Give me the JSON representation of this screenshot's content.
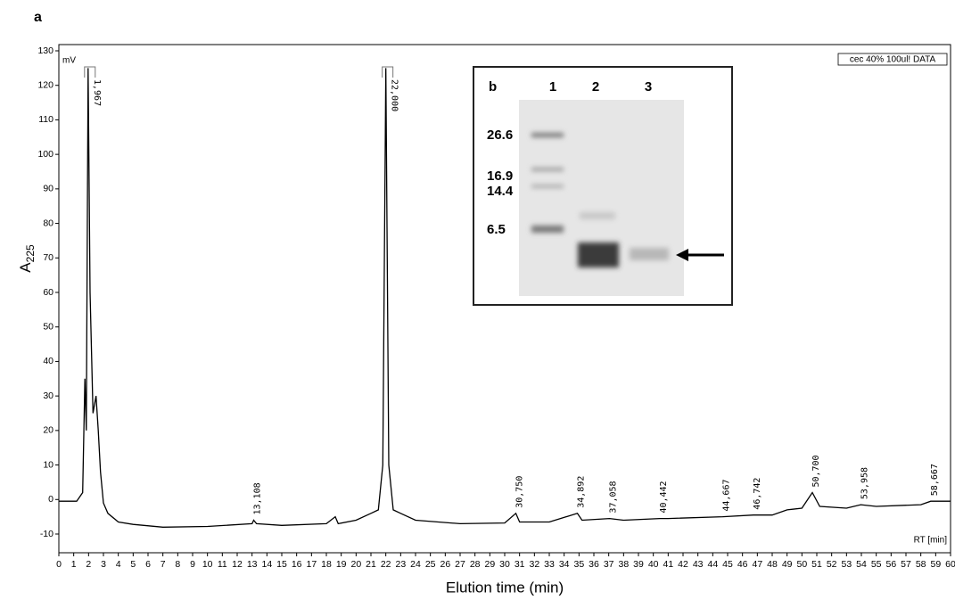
{
  "panel_label": "a",
  "chart_data": {
    "type": "line",
    "xlabel": "Elution time (min)",
    "ylabel": {
      "text": "A",
      "subscript": "225"
    },
    "y_unit": "mV",
    "x_unit": "RT [min]",
    "file_label": "cec 40% 100ul! DATA",
    "xlim": [
      0,
      60
    ],
    "ylim": [
      -10,
      130
    ],
    "xticks": [
      0,
      1,
      2,
      3,
      4,
      5,
      6,
      7,
      8,
      9,
      10,
      11,
      12,
      13,
      14,
      15,
      16,
      17,
      18,
      19,
      20,
      21,
      22,
      23,
      24,
      25,
      26,
      27,
      28,
      29,
      30,
      31,
      32,
      33,
      34,
      35,
      36,
      37,
      38,
      39,
      40,
      41,
      42,
      43,
      44,
      45,
      46,
      47,
      48,
      49,
      50,
      51,
      52,
      53,
      54,
      55,
      56,
      57,
      58,
      59,
      60
    ],
    "yticks": [
      -10,
      0,
      10,
      20,
      30,
      40,
      50,
      60,
      70,
      80,
      90,
      100,
      110,
      120,
      130
    ],
    "series": [
      {
        "color": "#000000",
        "x": [
          0,
          1.2,
          1.6,
          1.75,
          1.85,
          1.967,
          2.1,
          2.3,
          2.5,
          2.65,
          2.8,
          3.0,
          3.3,
          4,
          5,
          7,
          10,
          13,
          13.108,
          13.3,
          15,
          18,
          18.6,
          18.8,
          20,
          21,
          21.5,
          21.8,
          22.0,
          22.2,
          22.5,
          23,
          24,
          27,
          30,
          30.75,
          31,
          33,
          34.892,
          35.2,
          37.058,
          38,
          40.442,
          41,
          44.667,
          46.742,
          48,
          49,
          50,
          50.7,
          51.2,
          53,
          53.958,
          55,
          58,
          58.667,
          60
        ],
        "y": [
          -0.5,
          -0.5,
          2,
          35,
          20,
          125,
          60,
          25,
          30,
          20,
          8,
          -1,
          -4,
          -6.5,
          -7.2,
          -8,
          -7.8,
          -7,
          -6,
          -7,
          -7.5,
          -7,
          -5,
          -7,
          -6,
          -4,
          -3,
          10,
          125,
          10,
          -3,
          -4,
          -6,
          -7,
          -6.8,
          -4,
          -6.5,
          -6.5,
          -4,
          -6,
          -5.5,
          -6,
          -5.5,
          -5.5,
          -5,
          -4.5,
          -4.5,
          -3,
          -2.5,
          2,
          -2,
          -2.5,
          -1.5,
          -2,
          -1.5,
          -0.5,
          -0.5
        ]
      }
    ],
    "peaks": [
      {
        "value": 1.967,
        "label": "1,967"
      },
      {
        "value": 13.108,
        "label": "13,108"
      },
      {
        "value": 22.0,
        "label": "22,000"
      },
      {
        "value": 30.75,
        "label": "30,750"
      },
      {
        "value": 34.892,
        "label": "34,892"
      },
      {
        "value": 37.058,
        "label": "37,058"
      },
      {
        "value": 40.442,
        "label": "40,442"
      },
      {
        "value": 44.667,
        "label": "44,667"
      },
      {
        "value": 46.742,
        "label": "46,742"
      },
      {
        "value": 50.7,
        "label": "50,700"
      },
      {
        "value": 53.958,
        "label": "53,958"
      },
      {
        "value": 58.667,
        "label": "58,667"
      }
    ]
  },
  "inset": {
    "label": "b",
    "lanes": [
      "1",
      "2",
      "3"
    ],
    "markers": [
      "26.6",
      "16.9",
      "14.4",
      "6.5"
    ]
  }
}
